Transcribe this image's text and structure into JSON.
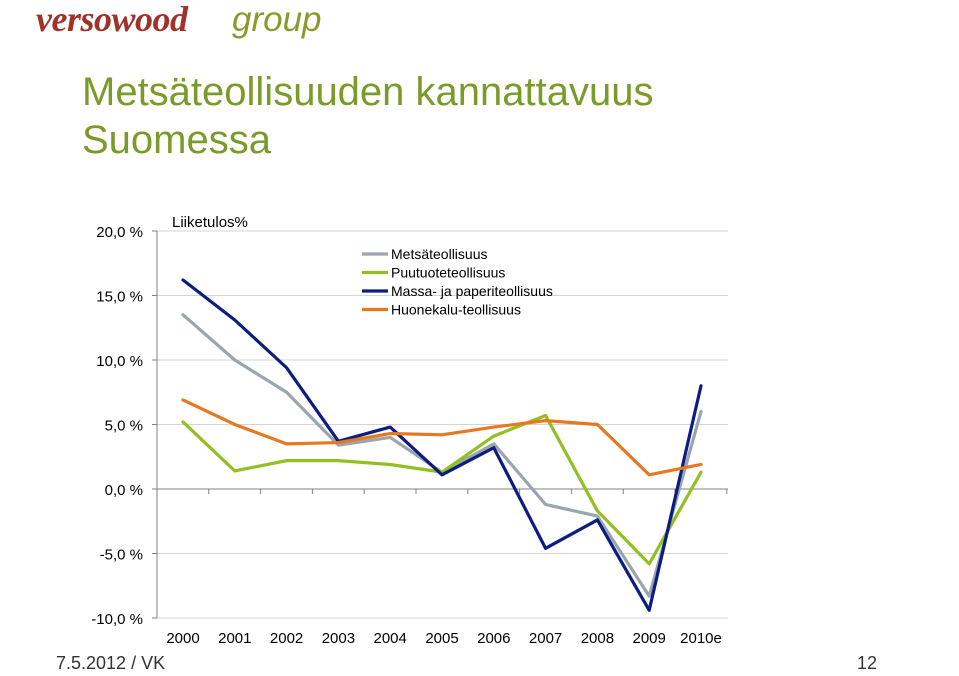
{
  "header": {
    "logo_brand": "versowood",
    "logo_group": "group",
    "title": "Metsäteollisuuden kannattavuus Suomessa"
  },
  "footer": {
    "date_author": "7.5.2012 / VK",
    "page_number": "12"
  },
  "colors": {
    "title": "#7a9a2a",
    "brand": "#a0322a"
  },
  "chart_data": {
    "type": "line",
    "title": "Liiketulos%",
    "xlabel": "",
    "ylabel": "",
    "categories": [
      "2000",
      "2001",
      "2002",
      "2003",
      "2004",
      "2005",
      "2006",
      "2007",
      "2008",
      "2009",
      "2010e"
    ],
    "ylim": [
      -10,
      20
    ],
    "yticks": [
      20,
      15,
      10,
      5,
      0,
      -5,
      -10
    ],
    "ytick_labels": [
      "20,0 %",
      "15,0 %",
      "10,0 %",
      "5,0 %",
      "0,0 %",
      "-5,0 %",
      "-10,0 %"
    ],
    "grid": true,
    "legend_position": "top-right",
    "series": [
      {
        "name": "Metsäteollisuus",
        "color": "#9aa5ae",
        "values": [
          13.5,
          10.0,
          7.5,
          3.4,
          4.0,
          1.3,
          3.5,
          -1.2,
          -2.1,
          -8.3,
          6.0
        ]
      },
      {
        "name": "Puutuoteteollisuus",
        "color": "#92c020",
        "values": [
          5.2,
          1.4,
          2.2,
          2.2,
          1.9,
          1.3,
          4.1,
          5.7,
          -1.7,
          -5.8,
          1.3
        ]
      },
      {
        "name": "Massa- ja paperiteollisuus",
        "color": "#0c1c80",
        "values": [
          16.2,
          13.1,
          9.4,
          3.7,
          4.8,
          1.1,
          3.2,
          -4.6,
          -2.4,
          -9.4,
          8.0
        ]
      },
      {
        "name": "Huonekalu-teollisuus",
        "color": "#e87820",
        "values": [
          6.9,
          5.0,
          3.5,
          3.6,
          4.3,
          4.2,
          4.8,
          5.3,
          5.0,
          1.1,
          1.9
        ]
      }
    ]
  }
}
